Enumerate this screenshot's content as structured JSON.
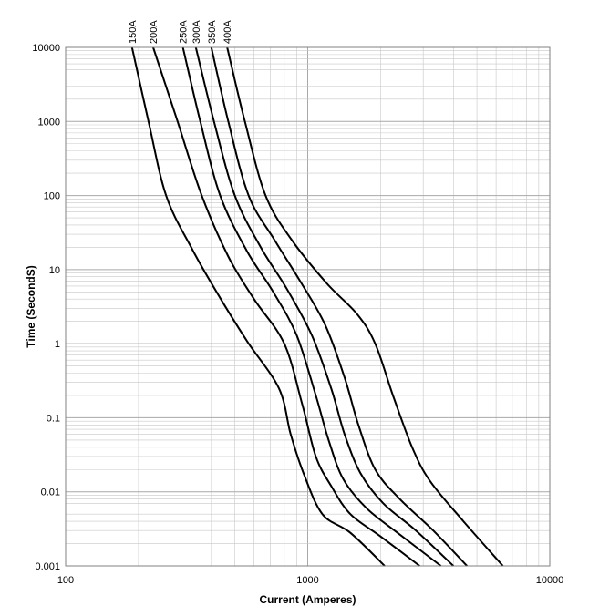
{
  "chart_data": {
    "type": "line",
    "title": "",
    "xlabel": "Current  (Amperes)",
    "ylabel": "Time (SecondS)",
    "xscale": "log",
    "yscale": "log",
    "xlim": [
      100,
      10000
    ],
    "ylim": [
      0.001,
      10000
    ],
    "grid": true,
    "legend": "series labels rotated along top edge",
    "x_ticks": [
      "100",
      "1000",
      "10000"
    ],
    "y_ticks": [
      "0.001",
      "0.01",
      "0.1",
      "1",
      "10",
      "100",
      "1000",
      "10000"
    ],
    "line_color": "#000000",
    "grid_color": "#c8c8c8",
    "series": [
      {
        "name": "150A",
        "points": [
          [
            188,
            10000
          ],
          [
            220,
            1000
          ],
          [
            260,
            100
          ],
          [
            330,
            20
          ],
          [
            420,
            5
          ],
          [
            560,
            1.1
          ],
          [
            760,
            0.25
          ],
          [
            850,
            0.06
          ],
          [
            960,
            0.018
          ],
          [
            1150,
            0.005
          ],
          [
            1500,
            0.0028
          ],
          [
            2080,
            0.001
          ]
        ]
      },
      {
        "name": "200A",
        "points": [
          [
            230,
            10000
          ],
          [
            290,
            1000
          ],
          [
            365,
            100
          ],
          [
            470,
            15
          ],
          [
            600,
            4
          ],
          [
            800,
            1
          ],
          [
            950,
            0.15
          ],
          [
            1080,
            0.03
          ],
          [
            1250,
            0.012
          ],
          [
            1500,
            0.005
          ],
          [
            2000,
            0.0025
          ],
          [
            2900,
            0.001
          ]
        ]
      },
      {
        "name": "250A",
        "points": [
          [
            305,
            10000
          ],
          [
            360,
            1000
          ],
          [
            435,
            100
          ],
          [
            560,
            18
          ],
          [
            720,
            5
          ],
          [
            900,
            1.3
          ],
          [
            1080,
            0.2
          ],
          [
            1220,
            0.05
          ],
          [
            1400,
            0.015
          ],
          [
            1750,
            0.006
          ],
          [
            2350,
            0.0028
          ],
          [
            3550,
            0.001
          ]
        ]
      },
      {
        "name": "300A",
        "points": [
          [
            345,
            10000
          ],
          [
            410,
            1000
          ],
          [
            500,
            100
          ],
          [
            640,
            20
          ],
          [
            820,
            5.5
          ],
          [
            1040,
            1.3
          ],
          [
            1250,
            0.25
          ],
          [
            1420,
            0.06
          ],
          [
            1650,
            0.018
          ],
          [
            2050,
            0.007
          ],
          [
            2800,
            0.003
          ],
          [
            4000,
            0.001
          ]
        ]
      },
      {
        "name": "350A",
        "points": [
          [
            400,
            10000
          ],
          [
            470,
            1000
          ],
          [
            570,
            100
          ],
          [
            730,
            25
          ],
          [
            930,
            7
          ],
          [
            1180,
            1.8
          ],
          [
            1420,
            0.35
          ],
          [
            1620,
            0.08
          ],
          [
            1900,
            0.02
          ],
          [
            2400,
            0.008
          ],
          [
            3300,
            0.003
          ],
          [
            4550,
            0.001
          ]
        ]
      },
      {
        "name": "400A",
        "points": [
          [
            465,
            10000
          ],
          [
            550,
            1000
          ],
          [
            670,
            100
          ],
          [
            860,
            25
          ],
          [
            1200,
            6.5
          ],
          [
            1600,
            2.5
          ],
          [
            1900,
            1
          ],
          [
            2250,
            0.2
          ],
          [
            2700,
            0.04
          ],
          [
            3200,
            0.014
          ],
          [
            4400,
            0.004
          ],
          [
            6400,
            0.001
          ]
        ]
      }
    ]
  }
}
